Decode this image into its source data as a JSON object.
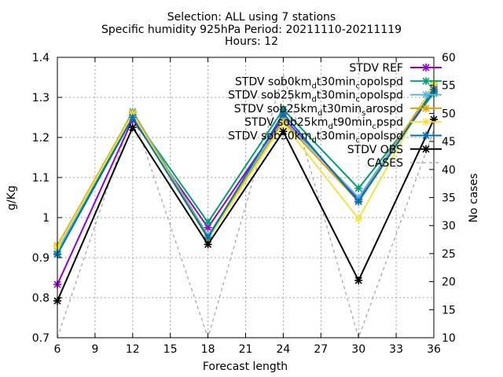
{
  "chart_data": {
    "type": "line",
    "title_lines": [
      "Selection: ALL using      7 stations",
      "Specific humidity 925hPa   Period: 20211110-20211119",
      "Hours: 12"
    ],
    "xlabel": "Forecast length",
    "ylabel": "g/Kg",
    "y2label": "No cases",
    "x": [
      6,
      12,
      18,
      24,
      30,
      36
    ],
    "xticks": [
      6,
      9,
      12,
      15,
      18,
      21,
      24,
      27,
      30,
      33,
      36
    ],
    "xlim": [
      6,
      36
    ],
    "ylim": [
      0.7,
      1.4
    ],
    "yticks": [
      "0.7",
      "0.8",
      "0.9",
      "1",
      "1.1",
      "1.2",
      "1.3",
      "1.4"
    ],
    "y2lim": [
      10,
      60
    ],
    "y2ticks": [
      "10",
      "15",
      "20",
      "25",
      "30",
      "35",
      "40",
      "45",
      "50",
      "55",
      "60"
    ],
    "grid": true,
    "legend_position": "top-right",
    "series": [
      {
        "name": "STDV REF",
        "color": "#9400d3",
        "values": [
          0.833,
          1.245,
          0.975,
          1.25,
          1.045,
          1.315
        ]
      },
      {
        "name": "STDV sob0km_dt30min_copolspd",
        "color": "#009e73",
        "values": [
          0.91,
          1.255,
          0.988,
          1.27,
          1.073,
          1.31
        ]
      },
      {
        "name": "STDV sob25km_dt30min_copolspd",
        "color": "#56b4e9",
        "values": [
          0.915,
          1.265,
          0.955,
          1.245,
          1.05,
          1.325
        ]
      },
      {
        "name": "STDV sob25km_dt30min_sarospd",
        "color": "#e69f00",
        "values": [
          0.93,
          1.262,
          0.95,
          1.24,
          1.04,
          1.33
        ]
      },
      {
        "name": "STDV sob25km_dt90min_cpspd",
        "color": "#f0e442",
        "values": [
          0.925,
          1.258,
          0.945,
          1.235,
          0.997,
          1.335
        ]
      },
      {
        "name": "STDV sob50km_dt30min_copolspd",
        "color": "#0072b2",
        "values": [
          0.908,
          1.25,
          0.95,
          1.26,
          1.04,
          1.32
        ]
      },
      {
        "name": "STDV OBS",
        "color": "#000000",
        "values": [
          0.792,
          1.225,
          0.933,
          1.215,
          0.843,
          1.245
        ]
      },
      {
        "name": "CASES",
        "color": "#a0a0a0",
        "dashed": true,
        "axis": "y2",
        "values": [
          10,
          50,
          10,
          57,
          10,
          47
        ]
      }
    ],
    "legend_labels": [
      [
        "STDV REF"
      ],
      [
        "STDV sob0km",
        "d",
        "t30min",
        "c",
        "opolspd"
      ],
      [
        "STDV sob25km",
        "d",
        "t30min",
        "c",
        "opolspd"
      ],
      [
        "STDV sob25km",
        "d",
        "t30min",
        "s",
        "arospd"
      ],
      [
        "STDV sob25km",
        "d",
        "t90min",
        "c",
        "pspd"
      ],
      [
        "STDV sob50km",
        "d",
        "t30min",
        "c",
        "opolspd"
      ],
      [
        "STDV OBS"
      ],
      [
        "CASES"
      ]
    ]
  }
}
